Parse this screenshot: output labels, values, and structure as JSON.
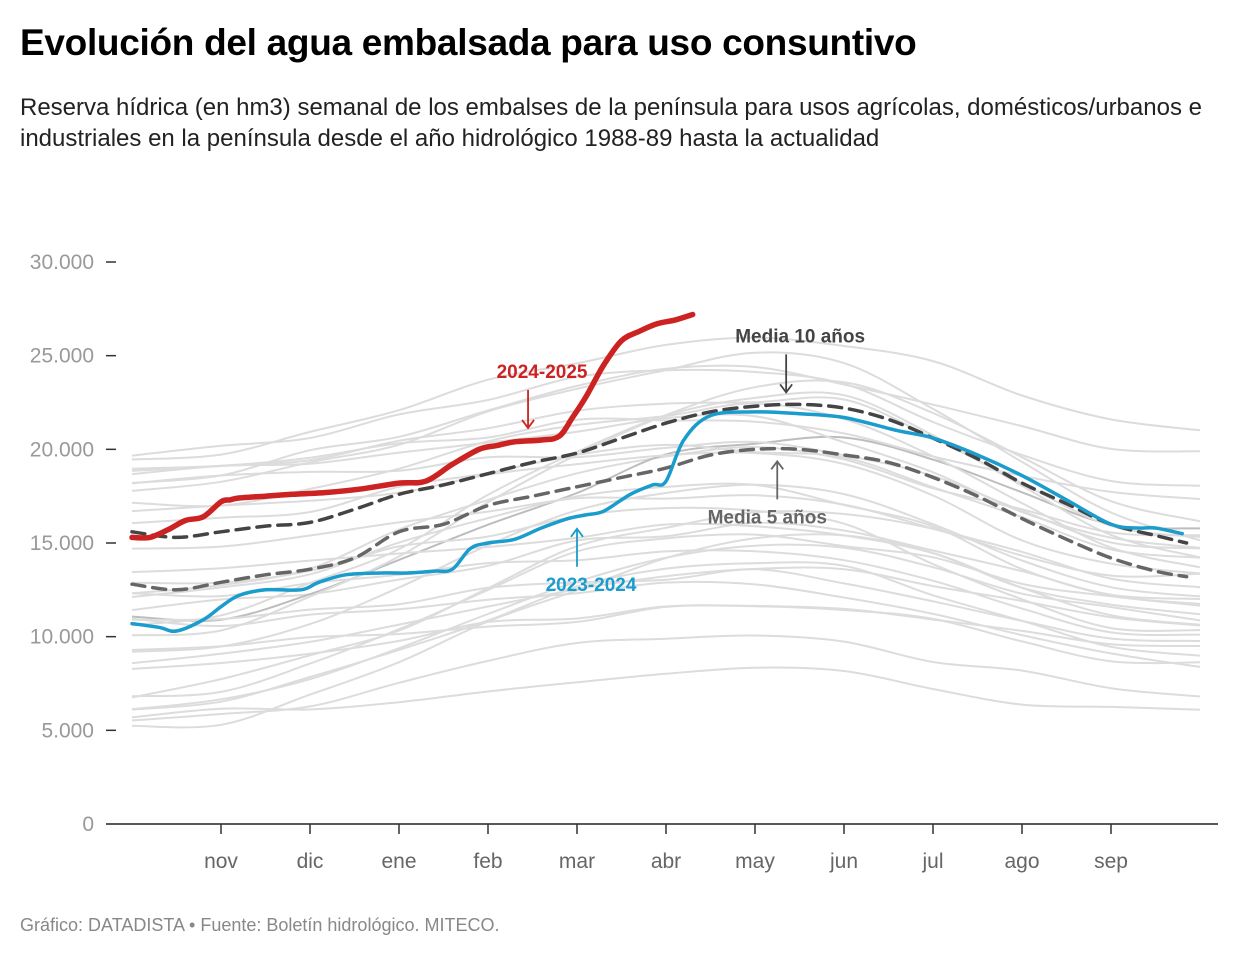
{
  "title": "Evolución del agua embalsada para uso consuntivo",
  "subtitle": "Reserva hídrica (en hm3) semanal de los embalses de la península para usos agrícolas, domésticos/urbanos e industriales en la península desde el año hidrológico 1988-89 hasta la actualidad",
  "footer": "Gráfico: DATADISTA • Fuente: Boletín hidrológico. MITECO.",
  "colors": {
    "current": "#cc2222",
    "previous": "#1a9ccc",
    "mean10": "#444444",
    "mean5": "#666666",
    "history": "#dcdcdc",
    "history_dark": "#bdbdbd"
  },
  "chart_data": {
    "type": "line",
    "title": "Evolución del agua embalsada para uso consuntivo",
    "xlabel": "",
    "ylabel": "",
    "x_domain": [
      0,
      12
    ],
    "month_ticks": [
      {
        "label": "nov",
        "x": 1
      },
      {
        "label": "dic",
        "x": 2
      },
      {
        "label": "ene",
        "x": 3
      },
      {
        "label": "feb",
        "x": 4
      },
      {
        "label": "mar",
        "x": 5
      },
      {
        "label": "abr",
        "x": 6
      },
      {
        "label": "may",
        "x": 7
      },
      {
        "label": "jun",
        "x": 8
      },
      {
        "label": "jul",
        "x": 9
      },
      {
        "label": "ago",
        "x": 10
      },
      {
        "label": "sep",
        "x": 11
      }
    ],
    "y_ticks": [
      {
        "label": "0",
        "value": 0
      },
      {
        "label": "5.000",
        "value": 5000
      },
      {
        "label": "10.000",
        "value": 10000
      },
      {
        "label": "15.000",
        "value": 15000
      },
      {
        "label": "20.000",
        "value": 20000
      },
      {
        "label": "25.000",
        "value": 25000
      },
      {
        "label": "30.000",
        "value": 30000
      }
    ],
    "ylim": [
      0,
      31500
    ],
    "grid": false,
    "series": [
      {
        "name": "2024-2025",
        "role": "current",
        "x": [
          0,
          0.2,
          0.4,
          0.6,
          0.8,
          1.0,
          1.1,
          1.2,
          1.5,
          1.8,
          2.2,
          2.6,
          3.0,
          3.3,
          3.6,
          3.9,
          4.1,
          4.3,
          4.6,
          4.8,
          4.95,
          5.1,
          5.3,
          5.5,
          5.7,
          5.9,
          6.1,
          6.3
        ],
        "y": [
          15300,
          15300,
          15700,
          16200,
          16400,
          17200,
          17300,
          17400,
          17500,
          17600,
          17700,
          17900,
          18200,
          18300,
          19200,
          20000,
          20200,
          20400,
          20500,
          20700,
          21700,
          22800,
          24500,
          25800,
          26300,
          26700,
          26900,
          27200
        ]
      },
      {
        "name": "2023-2024",
        "role": "previous",
        "x": [
          0,
          0.3,
          0.5,
          0.8,
          1.0,
          1.2,
          1.5,
          1.9,
          2.1,
          2.4,
          2.8,
          3.1,
          3.4,
          3.6,
          3.8,
          4.0,
          4.3,
          4.6,
          4.9,
          5.1,
          5.3,
          5.6,
          5.85,
          6.0,
          6.2,
          6.5,
          7.0,
          7.5,
          8.0,
          8.6,
          9.0,
          9.5,
          10.0,
          10.5,
          11.0,
          11.3,
          11.5,
          11.8
        ],
        "y": [
          10700,
          10500,
          10300,
          10900,
          11600,
          12200,
          12500,
          12500,
          12900,
          13300,
          13400,
          13400,
          13500,
          13600,
          14700,
          15000,
          15200,
          15800,
          16300,
          16500,
          16700,
          17600,
          18100,
          18300,
          20500,
          21800,
          22000,
          21900,
          21700,
          21000,
          20600,
          19700,
          18600,
          17300,
          16000,
          15800,
          15800,
          15500
        ]
      },
      {
        "name": "Media 10 años",
        "role": "mean10",
        "x": [
          0,
          0.5,
          1,
          1.5,
          2,
          2.5,
          3,
          3.5,
          4,
          4.5,
          5,
          5.5,
          6,
          6.5,
          7,
          7.5,
          8,
          8.5,
          9,
          9.5,
          10,
          10.5,
          11,
          11.5,
          11.85
        ],
        "y": [
          15600,
          15300,
          15600,
          15900,
          16100,
          16800,
          17600,
          18100,
          18700,
          19300,
          19800,
          20600,
          21400,
          22000,
          22300,
          22400,
          22200,
          21600,
          20600,
          19500,
          18200,
          17100,
          16000,
          15400,
          15000
        ]
      },
      {
        "name": "Media 5 años",
        "role": "mean5",
        "x": [
          0,
          0.5,
          1,
          1.5,
          2,
          2.5,
          3,
          3.5,
          4,
          4.5,
          5,
          5.5,
          6,
          6.5,
          7,
          7.5,
          8,
          8.5,
          9,
          9.5,
          10,
          10.5,
          11,
          11.5,
          11.85
        ],
        "y": [
          12800,
          12500,
          12900,
          13300,
          13600,
          14200,
          15600,
          16000,
          17000,
          17500,
          18000,
          18500,
          19000,
          19700,
          20000,
          20000,
          19700,
          19300,
          18500,
          17500,
          16300,
          15200,
          14200,
          13500,
          13200
        ]
      }
    ],
    "annotations": [
      {
        "text": "2024-2025",
        "series": "2024-2025",
        "x": 4.45,
        "y": 20500,
        "arrow": "down"
      },
      {
        "text": "2023-2024",
        "series": "2023-2024",
        "x": 5.0,
        "y": 16400,
        "arrow": "up"
      },
      {
        "text": "Media 10 años",
        "series": "Media 10 años",
        "x": 7.35,
        "y": 22400,
        "arrow": "down"
      },
      {
        "text": "Media 5 años",
        "series": "Media 5 años",
        "x": 7.25,
        "y": 20000,
        "arrow": "up"
      }
    ]
  }
}
